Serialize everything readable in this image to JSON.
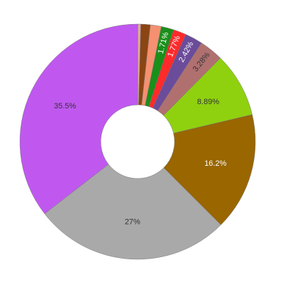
{
  "chart_data": {
    "type": "donut",
    "values": [
      0.43,
      1.3,
      1.5,
      1.71,
      1.77,
      2.42,
      3.28,
      8.89,
      16.2,
      27,
      35.5
    ],
    "value_labels": [
      null,
      null,
      null,
      "1.71%",
      "1.77%",
      "2.42%",
      "3.28%",
      "8.89%",
      "16.2%",
      "27%",
      "35.5%"
    ],
    "colors": [
      "#e6a5a5",
      "#8b4513",
      "#f59070",
      "#1a8f1a",
      "#ff2a2a",
      "#6b4c9a",
      "#b07070",
      "#8fd10f",
      "#996600",
      "#a9a9a9",
      "#c058f0"
    ],
    "label_colors": [
      "#333333",
      "#333333",
      "#333333",
      "#ffffff",
      "#ffffff",
      "#ffffff",
      "#333333",
      "#333333",
      "#ffffff",
      "#333333",
      "#333333"
    ]
  }
}
